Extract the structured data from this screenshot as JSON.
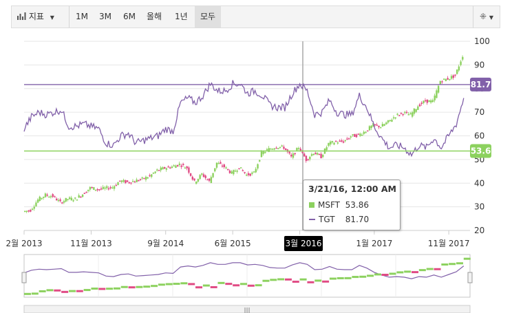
{
  "toolbar": {
    "indicators_label": "지표",
    "ranges": [
      "1M",
      "3M",
      "6M",
      "올해",
      "1년",
      "모두"
    ],
    "selected_range": "모두",
    "settings_icon": "crosshair-settings-icon"
  },
  "chart_data": {
    "type": "candlestick",
    "title": "",
    "xlabel": "",
    "ylabel": "",
    "x_ticks": [
      "2월 2013",
      "11월 2013",
      "9월 2014",
      "6월 2015",
      "3월 2016",
      "1월 2017",
      "11월 2017"
    ],
    "x_range": [
      "2013-02",
      "2018-01"
    ],
    "y_ticks": [
      20,
      30,
      40,
      50,
      60,
      70,
      80,
      90,
      100
    ],
    "ylim": [
      20,
      100
    ],
    "grid": true,
    "colors": {
      "up": "#8cd15e",
      "down": "#e04b84",
      "line": "#8160a9",
      "crosshair": "#aaaaaa"
    },
    "series": [
      {
        "name": "MSFT",
        "kind": "candlestick",
        "color": "#8cd15e",
        "last_value_label": "53.6",
        "last_value": 53.6,
        "monthly_close": [
          [
            "2013-02",
            28
          ],
          [
            "2013-03",
            28.6
          ],
          [
            "2013-04",
            33
          ],
          [
            "2013-05",
            35
          ],
          [
            "2013-06",
            34.5
          ],
          [
            "2013-07",
            31.8
          ],
          [
            "2013-08",
            33.4
          ],
          [
            "2013-09",
            33.3
          ],
          [
            "2013-10",
            35.4
          ],
          [
            "2013-11",
            38
          ],
          [
            "2013-12",
            37.4
          ],
          [
            "2014-01",
            37.8
          ],
          [
            "2014-02",
            38.3
          ],
          [
            "2014-03",
            41
          ],
          [
            "2014-04",
            40.4
          ],
          [
            "2014-05",
            41
          ],
          [
            "2014-06",
            41.7
          ],
          [
            "2014-07",
            43
          ],
          [
            "2014-08",
            45.4
          ],
          [
            "2014-09",
            46.4
          ],
          [
            "2014-10",
            47
          ],
          [
            "2014-11",
            48
          ],
          [
            "2014-12",
            46.5
          ],
          [
            "2015-01",
            40.4
          ],
          [
            "2015-02",
            43.8
          ],
          [
            "2015-03",
            40.7
          ],
          [
            "2015-04",
            48.6
          ],
          [
            "2015-05",
            46.9
          ],
          [
            "2015-06",
            44.2
          ],
          [
            "2015-07",
            46.7
          ],
          [
            "2015-08",
            43.5
          ],
          [
            "2015-09",
            44.3
          ],
          [
            "2015-10",
            52.6
          ],
          [
            "2015-11",
            54.4
          ],
          [
            "2015-12",
            55.5
          ],
          [
            "2016-01",
            55.1
          ],
          [
            "2016-02",
            50.9
          ],
          [
            "2016-03",
            55.2
          ],
          [
            "2016-04",
            49.9
          ],
          [
            "2016-05",
            53
          ],
          [
            "2016-06",
            51.2
          ],
          [
            "2016-07",
            56.7
          ],
          [
            "2016-08",
            57.5
          ],
          [
            "2016-09",
            57.6
          ],
          [
            "2016-10",
            59.9
          ],
          [
            "2016-11",
            60.3
          ],
          [
            "2016-12",
            62.1
          ],
          [
            "2017-01",
            64.6
          ],
          [
            "2017-02",
            63.9
          ],
          [
            "2017-03",
            65.9
          ],
          [
            "2017-04",
            68.5
          ],
          [
            "2017-05",
            69.8
          ],
          [
            "2017-06",
            68.9
          ],
          [
            "2017-07",
            72.7
          ],
          [
            "2017-08",
            74.8
          ],
          [
            "2017-09",
            74.5
          ],
          [
            "2017-10",
            83.2
          ],
          [
            "2017-11",
            84.2
          ],
          [
            "2017-12",
            85.5
          ],
          [
            "2018-01",
            94
          ]
        ]
      },
      {
        "name": "TGT",
        "kind": "line",
        "color": "#8160a9",
        "last_value_label": "81.7",
        "last_value": 81.7,
        "monthly_close": [
          [
            "2013-02",
            63
          ],
          [
            "2013-03",
            68
          ],
          [
            "2013-04",
            70
          ],
          [
            "2013-05",
            69
          ],
          [
            "2013-06",
            70
          ],
          [
            "2013-07",
            71
          ],
          [
            "2013-08",
            64
          ],
          [
            "2013-09",
            64
          ],
          [
            "2013-10",
            65
          ],
          [
            "2013-11",
            64
          ],
          [
            "2013-12",
            63
          ],
          [
            "2014-01",
            57
          ],
          [
            "2014-02",
            56
          ],
          [
            "2014-03",
            60
          ],
          [
            "2014-04",
            61
          ],
          [
            "2014-05",
            57
          ],
          [
            "2014-06",
            58
          ],
          [
            "2014-07",
            59
          ],
          [
            "2014-08",
            60
          ],
          [
            "2014-09",
            63
          ],
          [
            "2014-10",
            62
          ],
          [
            "2014-11",
            74
          ],
          [
            "2014-12",
            76
          ],
          [
            "2015-01",
            74
          ],
          [
            "2015-02",
            77
          ],
          [
            "2015-03",
            82
          ],
          [
            "2015-04",
            79
          ],
          [
            "2015-05",
            79
          ],
          [
            "2015-06",
            82
          ],
          [
            "2015-07",
            82
          ],
          [
            "2015-08",
            78
          ],
          [
            "2015-09",
            79
          ],
          [
            "2015-10",
            77
          ],
          [
            "2015-11",
            73
          ],
          [
            "2015-12",
            72
          ],
          [
            "2016-01",
            72
          ],
          [
            "2016-02",
            78
          ],
          [
            "2016-03",
            82
          ],
          [
            "2016-04",
            79
          ],
          [
            "2016-05",
            69
          ],
          [
            "2016-06",
            70
          ],
          [
            "2016-07",
            75
          ],
          [
            "2016-08",
            70
          ],
          [
            "2016-09",
            69
          ],
          [
            "2016-10",
            69
          ],
          [
            "2016-11",
            77
          ],
          [
            "2016-12",
            72
          ],
          [
            "2017-01",
            64
          ],
          [
            "2017-02",
            59
          ],
          [
            "2017-03",
            55
          ],
          [
            "2017-04",
            56
          ],
          [
            "2017-05",
            55
          ],
          [
            "2017-06",
            52
          ],
          [
            "2017-07",
            56
          ],
          [
            "2017-08",
            55
          ],
          [
            "2017-09",
            59
          ],
          [
            "2017-10",
            55
          ],
          [
            "2017-11",
            60
          ],
          [
            "2017-12",
            65
          ],
          [
            "2018-01",
            76
          ]
        ]
      }
    ],
    "reference_lines": [
      {
        "series": "TGT",
        "value": 81.7
      },
      {
        "series": "MSFT",
        "value": 53.6
      }
    ],
    "crosshair_label": "3월 2016",
    "tooltip": {
      "title": "3/21/16, 12:00 AM",
      "rows": [
        {
          "name": "MSFT",
          "value": "53.86"
        },
        {
          "name": "TGT",
          "value": "81.70"
        }
      ]
    },
    "navigator": true
  }
}
